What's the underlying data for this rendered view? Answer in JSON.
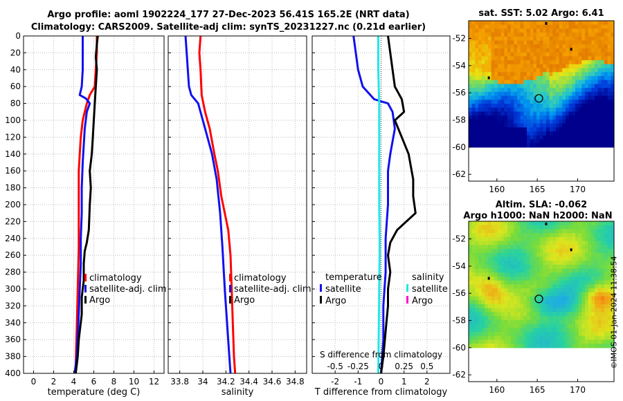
{
  "title": {
    "line1": "Argo profile: aoml 1902224_177 27-Dec-2023 56.41S 165.2E (NRT data)",
    "line2": "Climatology: CARS2009. Satellite-adj clim: synTS_20231227.nc (0.21d earlier)"
  },
  "colors": {
    "climatology": "#ff0000",
    "satellite": "#1010ee",
    "argo": "#000000",
    "salinity_satellite": "#22e6e6",
    "salinity_argo": "#ff00cc",
    "grid": "#bbbbbb",
    "zero_line": "#444444"
  },
  "footer": {
    "stamp": "©IMOS 01-Jan-2024 11:38:54"
  },
  "chart_data": [
    {
      "id": "temperature",
      "type": "line",
      "xlabel": "temperature (deg C)",
      "ylabel": "",
      "xlim": [
        -1,
        13
      ],
      "ylim": [
        400,
        0
      ],
      "xticks": [
        0,
        2,
        4,
        6,
        8,
        10,
        12
      ],
      "yticks": [
        0,
        20,
        40,
        60,
        80,
        100,
        120,
        140,
        160,
        180,
        200,
        220,
        240,
        260,
        280,
        300,
        320,
        340,
        360,
        380,
        400
      ],
      "grid": true,
      "legend": {
        "placement": "center-right",
        "entries": [
          "climatology",
          "satellite-adj. clim",
          "Argo"
        ]
      },
      "series": [
        {
          "name": "climatology",
          "color": "#ff0000",
          "points": [
            [
              6.3,
              0
            ],
            [
              6.3,
              10
            ],
            [
              6.3,
              20
            ],
            [
              6.2,
              40
            ],
            [
              6.1,
              60
            ],
            [
              5.6,
              70
            ],
            [
              5.3,
              80
            ],
            [
              4.9,
              100
            ],
            [
              4.7,
              120
            ],
            [
              4.6,
              140
            ],
            [
              4.5,
              160
            ],
            [
              4.5,
              200
            ],
            [
              4.5,
              250
            ],
            [
              4.4,
              300
            ],
            [
              4.3,
              350
            ],
            [
              4.2,
              390
            ],
            [
              4.1,
              400
            ]
          ]
        },
        {
          "name": "satellite-adj. clim",
          "color": "#1010ee",
          "points": [
            [
              4.9,
              0
            ],
            [
              4.9,
              20
            ],
            [
              4.9,
              40
            ],
            [
              4.8,
              60
            ],
            [
              4.6,
              70
            ],
            [
              5.2,
              74
            ],
            [
              5.6,
              80
            ],
            [
              5.3,
              90
            ],
            [
              5.1,
              110
            ],
            [
              4.9,
              150
            ],
            [
              4.8,
              180
            ],
            [
              4.8,
              210
            ],
            [
              4.7,
              240
            ],
            [
              4.7,
              270
            ],
            [
              4.6,
              300
            ],
            [
              4.5,
              330
            ],
            [
              4.3,
              380
            ],
            [
              4.1,
              400
            ]
          ]
        },
        {
          "name": "Argo",
          "color": "#000000",
          "points": [
            [
              6.4,
              0
            ],
            [
              6.3,
              10
            ],
            [
              6.2,
              25
            ],
            [
              6.3,
              40
            ],
            [
              6.2,
              60
            ],
            [
              6.1,
              80
            ],
            [
              6.0,
              100
            ],
            [
              5.9,
              120
            ],
            [
              5.8,
              140
            ],
            [
              5.6,
              160
            ],
            [
              5.7,
              180
            ],
            [
              5.6,
              200
            ],
            [
              5.5,
              230
            ],
            [
              5.3,
              245
            ],
            [
              5.1,
              255
            ],
            [
              5.0,
              270
            ],
            [
              5.0,
              290
            ],
            [
              4.8,
              310
            ],
            [
              4.8,
              330
            ],
            [
              4.5,
              360
            ],
            [
              4.4,
              380
            ],
            [
              4.2,
              400
            ]
          ]
        }
      ]
    },
    {
      "id": "salinity",
      "type": "line",
      "xlabel": "salinity",
      "ylabel": "",
      "xlim": [
        33.7,
        34.9
      ],
      "ylim": [
        400,
        0
      ],
      "xticks": [
        33.8,
        34,
        34.2,
        34.4,
        34.6,
        34.8
      ],
      "xticklabels": [
        "33.8",
        "34",
        "34.2",
        "34.4",
        "34.6",
        "34.8"
      ],
      "grid": true,
      "legend": {
        "placement": "center-right",
        "entries": [
          "climatology",
          "satellite-adj. clim",
          "Argo"
        ]
      },
      "series": [
        {
          "name": "climatology",
          "color": "#ff0000",
          "points": [
            [
              33.98,
              0
            ],
            [
              33.97,
              20
            ],
            [
              33.98,
              40
            ],
            [
              33.99,
              70
            ],
            [
              34.02,
              90
            ],
            [
              34.06,
              110
            ],
            [
              34.1,
              140
            ],
            [
              34.13,
              160
            ],
            [
              34.16,
              190
            ],
            [
              34.19,
              210
            ],
            [
              34.22,
              230
            ],
            [
              34.24,
              260
            ],
            [
              34.25,
              300
            ],
            [
              34.26,
              340
            ],
            [
              34.27,
              380
            ],
            [
              34.28,
              400
            ]
          ]
        },
        {
          "name": "satellite-adj. clim",
          "color": "#1010ee",
          "points": [
            [
              33.85,
              0
            ],
            [
              33.86,
              20
            ],
            [
              33.87,
              40
            ],
            [
              33.88,
              60
            ],
            [
              33.9,
              70
            ],
            [
              33.96,
              80
            ],
            [
              34.0,
              100
            ],
            [
              34.04,
              120
            ],
            [
              34.08,
              140
            ],
            [
              34.12,
              170
            ],
            [
              34.15,
              210
            ],
            [
              34.17,
              250
            ],
            [
              34.19,
              300
            ],
            [
              34.21,
              340
            ],
            [
              34.23,
              380
            ],
            [
              34.24,
              400
            ]
          ]
        },
        {
          "name": "Argo",
          "color": "#000000",
          "points": []
        }
      ]
    },
    {
      "id": "difference",
      "type": "line",
      "xlabel": "T difference from climatology",
      "x2label": "S difference from climatology",
      "ylabel": "",
      "xlim": [
        -3,
        3
      ],
      "x2lim": [
        -0.75,
        0.75
      ],
      "ylim": [
        400,
        0
      ],
      "xticks": [
        -2,
        -1,
        0,
        1,
        2
      ],
      "x2ticks": [
        -0.5,
        -0.25,
        0,
        0.25,
        0.5
      ],
      "x2ticklabels": [
        "-0.5",
        "-0.25",
        "0",
        "0.25",
        "0.5"
      ],
      "grid": true,
      "legend": {
        "placement": "center",
        "temperature_title": "temperature",
        "salinity_title": "salinity",
        "temperature_entries": [
          "satellite",
          "Argo"
        ],
        "salinity_entries": [
          "satellite",
          "Argo"
        ]
      },
      "series": [
        {
          "name": "temperature satellite",
          "color": "#1010ee",
          "points": [
            [
              -1.2,
              0
            ],
            [
              -1.1,
              20
            ],
            [
              -1.0,
              40
            ],
            [
              -0.8,
              60
            ],
            [
              -0.3,
              75
            ],
            [
              0.3,
              80
            ],
            [
              0.5,
              90
            ],
            [
              0.6,
              110
            ],
            [
              0.4,
              140
            ],
            [
              0.3,
              160
            ],
            [
              0.3,
              200
            ],
            [
              0.2,
              240
            ],
            [
              0.2,
              280
            ],
            [
              0.1,
              320
            ],
            [
              0.1,
              360
            ],
            [
              0,
              400
            ]
          ]
        },
        {
          "name": "temperature Argo",
          "color": "#000000",
          "points": [
            [
              0.3,
              0
            ],
            [
              0.4,
              20
            ],
            [
              0.5,
              40
            ],
            [
              0.6,
              60
            ],
            [
              0.9,
              75
            ],
            [
              1.0,
              90
            ],
            [
              0.6,
              100
            ],
            [
              0.9,
              120
            ],
            [
              1.2,
              140
            ],
            [
              1.4,
              170
            ],
            [
              1.4,
              190
            ],
            [
              1.5,
              210
            ],
            [
              1.1,
              220
            ],
            [
              0.7,
              230
            ],
            [
              0.4,
              245
            ],
            [
              0.3,
              260
            ],
            [
              0.4,
              280
            ],
            [
              0.3,
              300
            ],
            [
              0.3,
              320
            ],
            [
              0.2,
              350
            ],
            [
              0.1,
              380
            ],
            [
              0,
              400
            ]
          ]
        },
        {
          "name": "salinity satellite",
          "color": "#22e6e6",
          "axis": "x2",
          "points": [
            [
              -0.03,
              0
            ],
            [
              -0.03,
              40
            ],
            [
              -0.02,
              80
            ],
            [
              -0.02,
              120
            ],
            [
              -0.02,
              160
            ],
            [
              -0.02,
              200
            ],
            [
              -0.015,
              250
            ],
            [
              -0.02,
              300
            ],
            [
              -0.025,
              350
            ],
            [
              -0.03,
              400
            ]
          ]
        },
        {
          "name": "salinity Argo",
          "color": "#ff00cc",
          "axis": "x2",
          "points": []
        }
      ]
    },
    {
      "id": "sst_map",
      "type": "heatmap",
      "title": "sat. SST: 5.02 Argo: 6.41",
      "xticks": [
        160,
        165,
        170
      ],
      "yticks": [
        -52,
        -54,
        -56,
        -58,
        -60,
        -62
      ],
      "xlim": [
        156.5,
        174.5
      ],
      "ylim": [
        -62.5,
        -50.7
      ],
      "data_extent_lat": [
        -60,
        -50.7
      ],
      "marker": {
        "lon": 165.2,
        "lat": -56.41
      }
    },
    {
      "id": "sla_map",
      "type": "heatmap",
      "title": "Altim. SLA: -0.062",
      "subtitle": "Argo h1000: NaN h2000: NaN",
      "xticks": [
        160,
        165,
        170
      ],
      "yticks": [
        -52,
        -54,
        -56,
        -58,
        -60,
        -62
      ],
      "xlim": [
        156.5,
        174.5
      ],
      "ylim": [
        -62.5,
        -50.7
      ],
      "data_extent_lat": [
        -60,
        -50.7
      ],
      "marker": {
        "lon": 165.2,
        "lat": -56.41
      }
    }
  ]
}
